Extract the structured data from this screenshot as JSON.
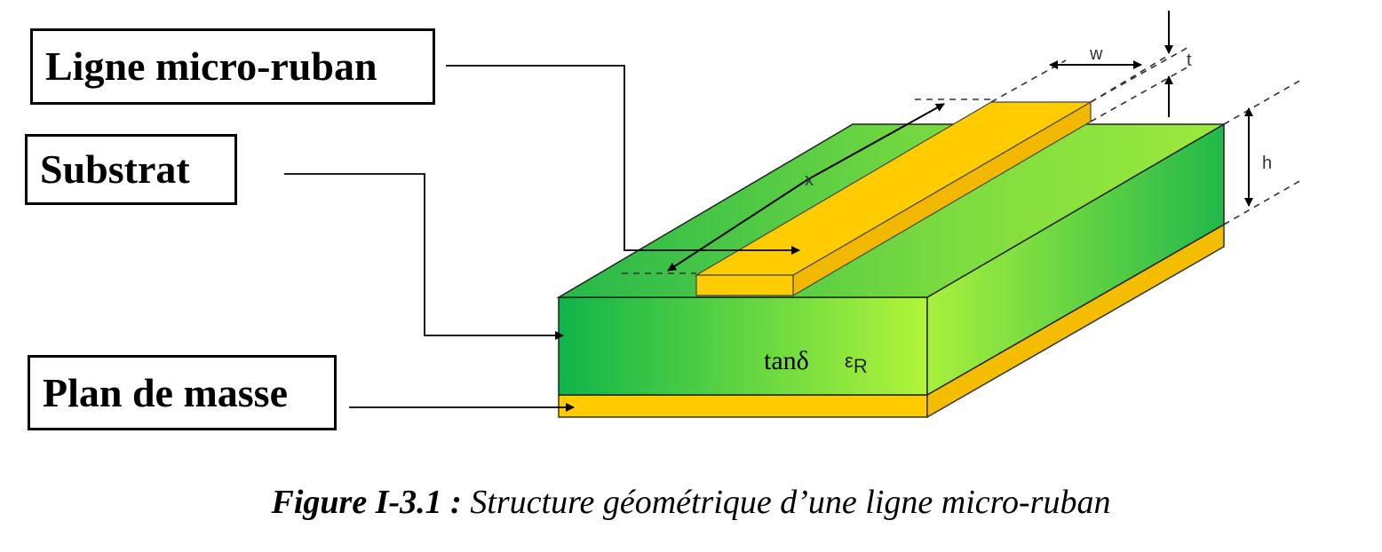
{
  "labels": {
    "ligne": "Ligne micro-ruban",
    "substrat": "Substrat",
    "masse": "Plan de masse"
  },
  "dimensions": {
    "w": "w",
    "t": "t",
    "h": "h",
    "x": "x"
  },
  "material": {
    "tan_delta": "tanδ",
    "epsilon": "ε",
    "epsilon_sub": "R"
  },
  "caption": {
    "figure": "Figure I-3.1 :",
    "text": " Structure géométrique d’une ligne micro-ruban"
  },
  "colors": {
    "substrate_dark": "#0fb44a",
    "substrate_light": "#b2f53a",
    "gold": "#ffcc00",
    "gold_edge": "#e2a800",
    "ink": "#000000"
  }
}
